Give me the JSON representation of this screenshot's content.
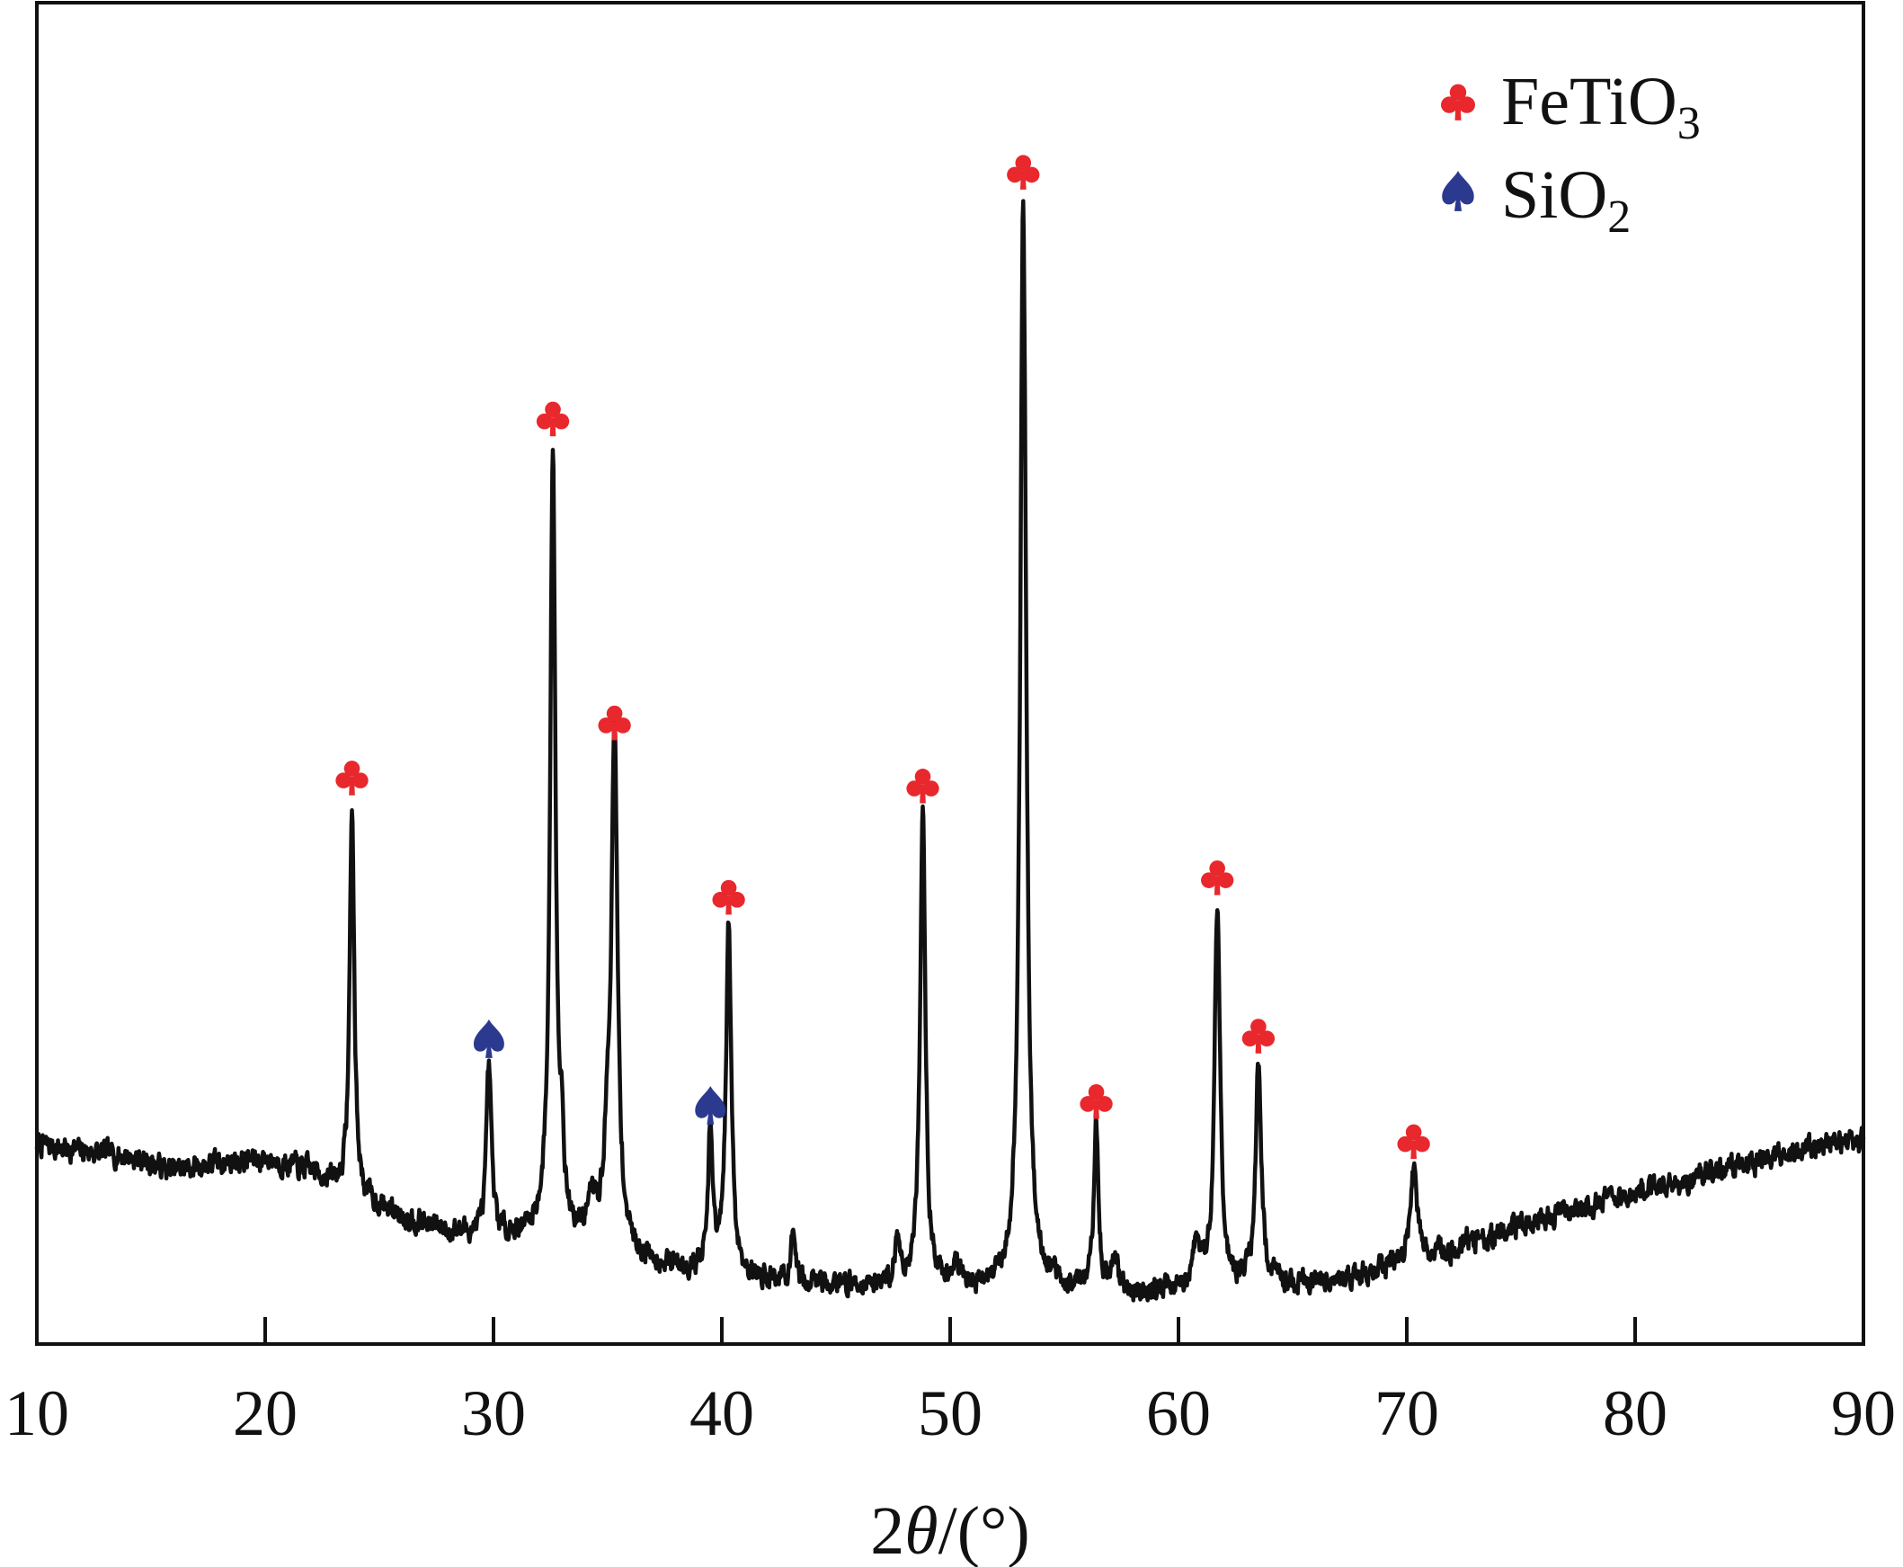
{
  "chart_data": {
    "type": "line",
    "title": "",
    "xlabel": {
      "prefix": "2",
      "symbol": "θ",
      "suffix": "/(°)"
    },
    "ylabel": "",
    "xlim": [
      10,
      90
    ],
    "ylim": [
      0,
      100
    ],
    "xticks": [
      "10",
      "20",
      "30",
      "40",
      "50",
      "60",
      "70",
      "80",
      "90"
    ],
    "legend": [
      {
        "name": "FeTiO",
        "subscript": "3",
        "marker": "club-icon",
        "color": "#e8282c"
      },
      {
        "name": "SiO",
        "subscript": "2",
        "marker": "spade-icon",
        "color": "#2b3a8f"
      }
    ],
    "peaks": [
      {
        "x": 23.8,
        "y": 47.2,
        "phase": "FeTiO3",
        "width": 0.12
      },
      {
        "x": 29.8,
        "y": 24.3,
        "phase": "SiO2",
        "width": 0.13
      },
      {
        "x": 32.6,
        "y": 78.5,
        "phase": "FeTiO3",
        "width": 0.14
      },
      {
        "x": 35.3,
        "y": 52.0,
        "phase": "FeTiO3",
        "width": 0.16
      },
      {
        "x": 39.5,
        "y": 18.5,
        "phase": "SiO2",
        "width": 0.12
      },
      {
        "x": 40.3,
        "y": 36.8,
        "phase": "FeTiO3",
        "width": 0.14
      },
      {
        "x": 48.8,
        "y": 46.5,
        "phase": "FeTiO3",
        "width": 0.14
      },
      {
        "x": 53.2,
        "y": 100.0,
        "phase": "FeTiO3",
        "width": 0.16
      },
      {
        "x": 56.4,
        "y": 19.0,
        "phase": "FeTiO3",
        "width": 0.12
      },
      {
        "x": 61.7,
        "y": 38.5,
        "phase": "FeTiO3",
        "width": 0.15
      },
      {
        "x": 63.5,
        "y": 24.7,
        "phase": "FeTiO3",
        "width": 0.15
      },
      {
        "x": 70.3,
        "y": 15.5,
        "phase": "FeTiO3",
        "width": 0.18
      }
    ],
    "minor_peaks": [
      {
        "x": 33.0,
        "y": 15.5,
        "width": 0.1
      },
      {
        "x": 34.3,
        "y": 12.0,
        "width": 0.25
      },
      {
        "x": 35.0,
        "y": 15.0,
        "width": 0.2
      },
      {
        "x": 43.1,
        "y": 9.3,
        "width": 0.1
      },
      {
        "x": 47.7,
        "y": 9.0,
        "width": 0.15
      },
      {
        "x": 50.2,
        "y": 7.5,
        "width": 0.2
      },
      {
        "x": 57.2,
        "y": 8.0,
        "width": 0.15
      },
      {
        "x": 60.8,
        "y": 8.8,
        "width": 0.2
      },
      {
        "x": 72.6,
        "y": 10.0,
        "width": 0.1
      }
    ],
    "baseline": [
      [
        10,
        17.8
      ],
      [
        12,
        17.2
      ],
      [
        14,
        16.8
      ],
      [
        16,
        15.5
      ],
      [
        18,
        16.2
      ],
      [
        20,
        16.5
      ],
      [
        22,
        15.5
      ],
      [
        24,
        13.2
      ],
      [
        26,
        11.5
      ],
      [
        28,
        10.2
      ],
      [
        30,
        9.8
      ],
      [
        32,
        10.0
      ],
      [
        34,
        9.0
      ],
      [
        36,
        8.0
      ],
      [
        38,
        7.0
      ],
      [
        40,
        6.5
      ],
      [
        42,
        6.0
      ],
      [
        44,
        5.8
      ],
      [
        46,
        5.5
      ],
      [
        48,
        5.5
      ],
      [
        50,
        5.0
      ],
      [
        52,
        5.2
      ],
      [
        54,
        5.5
      ],
      [
        56,
        5.0
      ],
      [
        58,
        4.8
      ],
      [
        60,
        5.0
      ],
      [
        62,
        5.2
      ],
      [
        64,
        5.5
      ],
      [
        66,
        5.8
      ],
      [
        68,
        6.5
      ],
      [
        70,
        7.5
      ],
      [
        72,
        8.5
      ],
      [
        74,
        10.0
      ],
      [
        76,
        11.5
      ],
      [
        78,
        12.5
      ],
      [
        80,
        13.5
      ],
      [
        82,
        14.5
      ],
      [
        84,
        15.5
      ],
      [
        86,
        16.5
      ],
      [
        88,
        17.8
      ],
      [
        90,
        18.0
      ]
    ]
  }
}
